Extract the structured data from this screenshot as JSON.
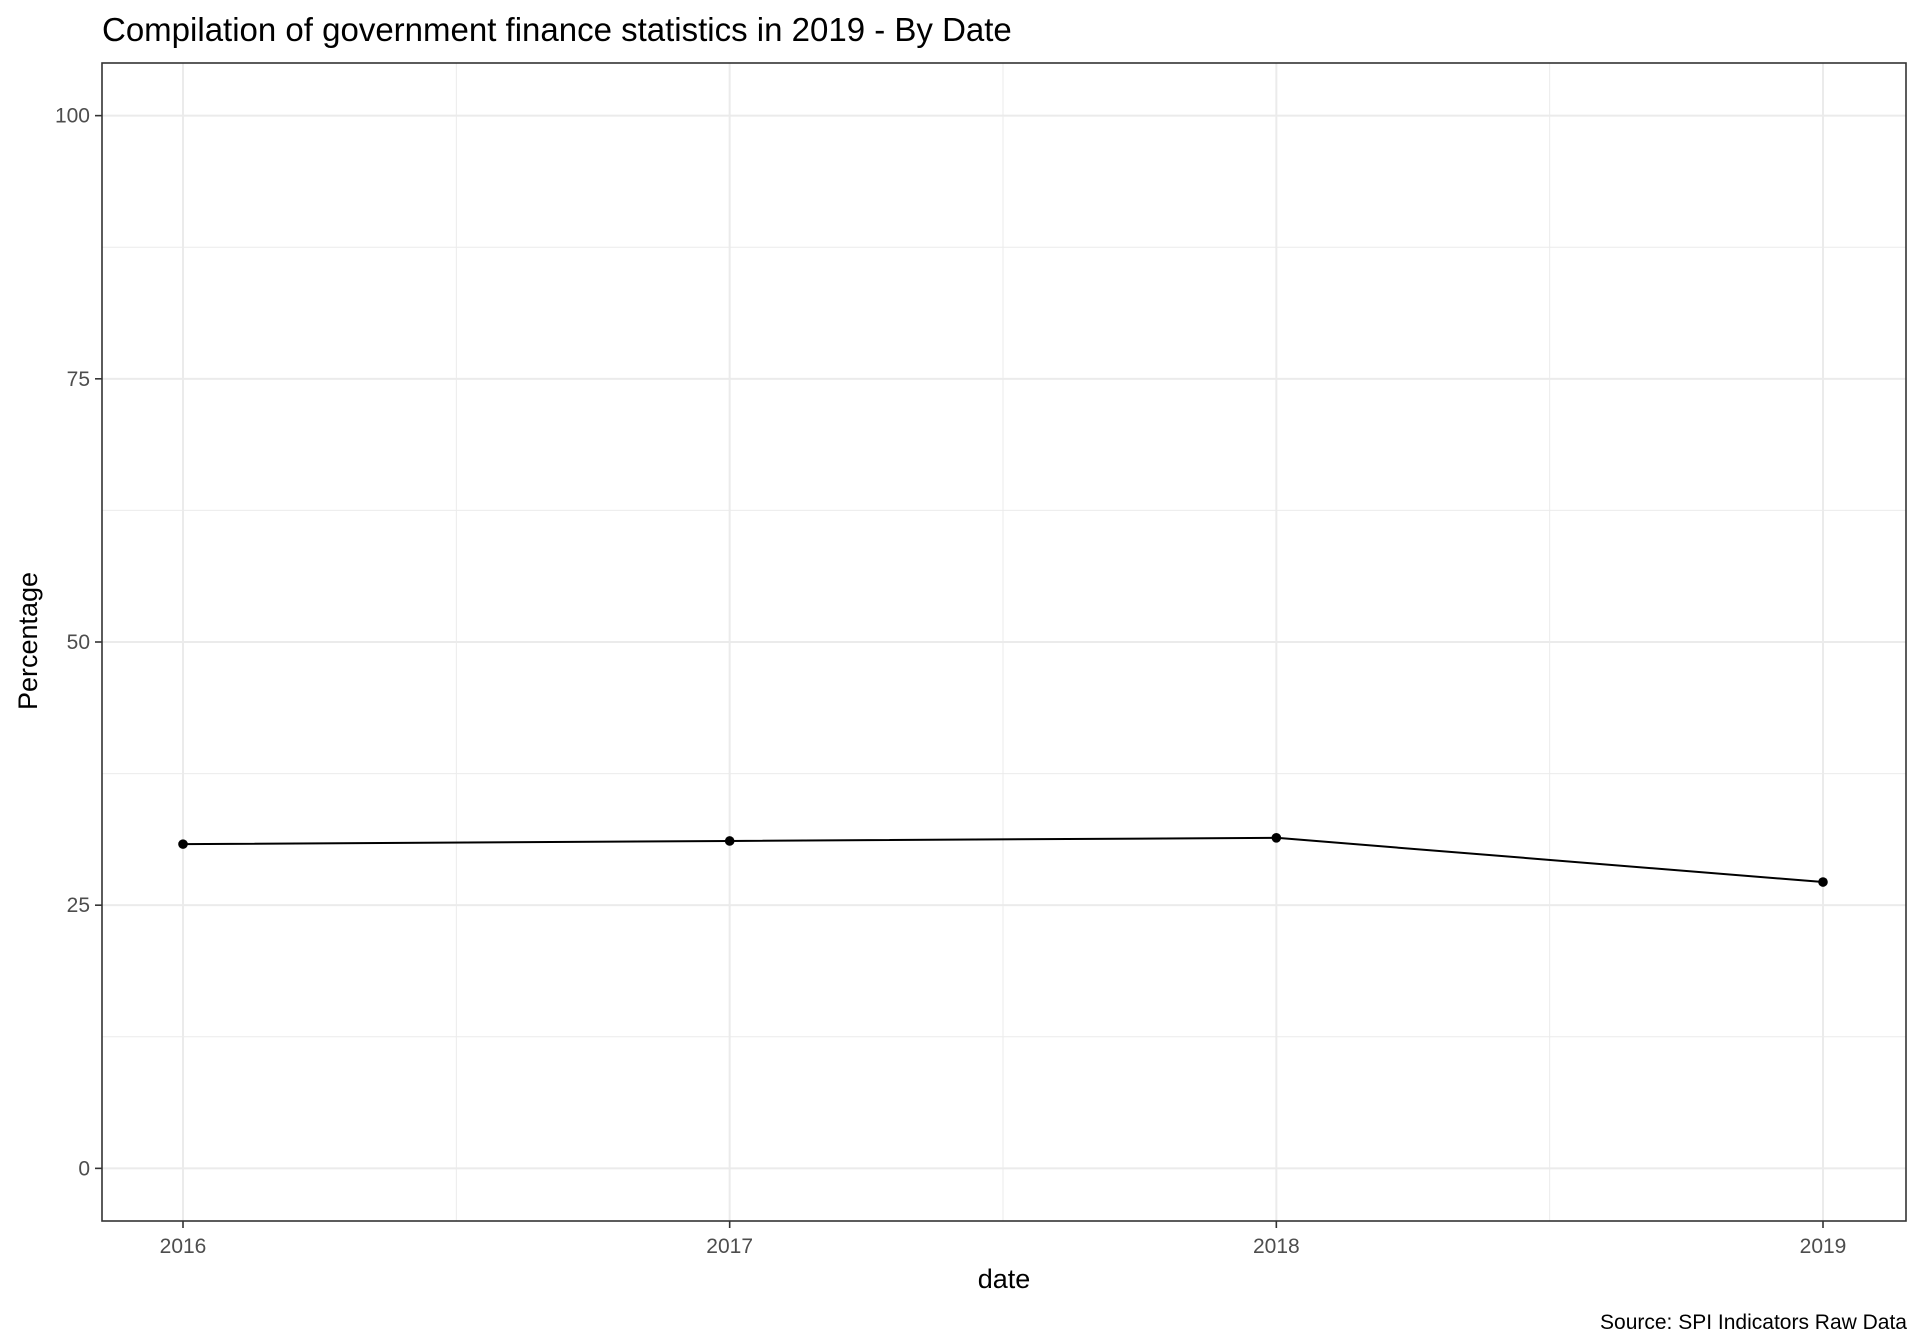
{
  "chart_data": {
    "type": "line",
    "title": "Compilation of government finance statistics in 2019 - By Date",
    "xlabel": "date",
    "ylabel": "Percentage",
    "caption": "Source: SPI Indicators Raw Data",
    "x": [
      "2016",
      "2017",
      "2018",
      "2019"
    ],
    "series": [
      {
        "values": [
          30.8,
          31.1,
          31.4,
          27.2
        ]
      }
    ],
    "x_ticks": [
      "2016",
      "2017",
      "2018",
      "2019"
    ],
    "y_ticks": [
      0,
      25,
      50,
      75,
      100
    ],
    "ylim": [
      -5,
      105
    ],
    "grid": true,
    "legend": "none",
    "colors": {
      "line": "#000000",
      "point": "#000000",
      "grid": "#ebebeb",
      "panel_border": "#333333",
      "tick_text": "#4d4d4d"
    }
  }
}
